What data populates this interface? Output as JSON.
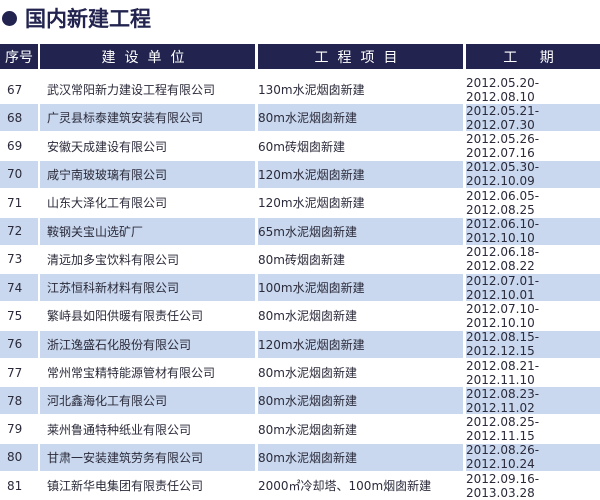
{
  "title": "国内新建工程",
  "colors": {
    "header": "#22244f",
    "alt_row": "#c9d8ee"
  },
  "headers": [
    "序号",
    "建设单位",
    "工程项目",
    "工 期"
  ],
  "rows": [
    [
      "67",
      "武汉常阳新力建设工程有限公司",
      "130m水泥烟囱新建",
      "2012.05.20-2012.08.10"
    ],
    [
      "68",
      "广灵县标泰建筑安装有限公司",
      "80m水泥烟囱新建",
      "2012.05.21-2012.07.30"
    ],
    [
      "69",
      "安徽天成建设有限公司",
      "60m砖烟囱新建",
      "2012.05.26-2012.07.16"
    ],
    [
      "70",
      "咸宁南玻玻璃有限公司",
      "120m水泥烟囱新建",
      "2012.05.30-2012.10.09"
    ],
    [
      "71",
      "山东大泽化工有限公司",
      "120m水泥烟囱新建",
      "2012.06.05-2012.08.25"
    ],
    [
      "72",
      "鞍钢关宝山选矿厂",
      "65m水泥烟囱新建",
      "2012.06.10-2012.10.10"
    ],
    [
      "73",
      "清远加多宝饮料有限公司",
      "80m砖烟囱新建",
      "2012.06.18-2012.08.22"
    ],
    [
      "74",
      "江苏恒科新材料有限公司",
      "100m水泥烟囱新建",
      "2012.07.01-2012.10.01"
    ],
    [
      "75",
      "繁峙县如阳供暖有限责任公司",
      "80m水泥烟囱新建",
      "2012.07.10-2012.10.10"
    ],
    [
      "76",
      "浙江逸盛石化股份有限公司",
      "120m水泥烟囱新建",
      "2012.08.15-2012.12.15"
    ],
    [
      "77",
      "常州常宝精特能源管材有限公司",
      "80m水泥烟囱新建",
      "2012.08.21-2012.11.10"
    ],
    [
      "78",
      "河北鑫海化工有限公司",
      "80m水泥烟囱新建",
      "2012.08.23-2012.11.02"
    ],
    [
      "79",
      "莱州鲁通特种纸业有限公司",
      "80m水泥烟囱新建",
      "2012.08.25-2012.11.15"
    ],
    [
      "80",
      "甘肃一安装建筑劳务有限公司",
      "80m水泥烟囱新建",
      "2012.08.26-2012.10.24"
    ],
    [
      "81",
      "镇江新华电集团有限责任公司",
      "2000㎡冷却塔、100m烟囱新建",
      "2012.09.16-2013.03.28"
    ]
  ]
}
